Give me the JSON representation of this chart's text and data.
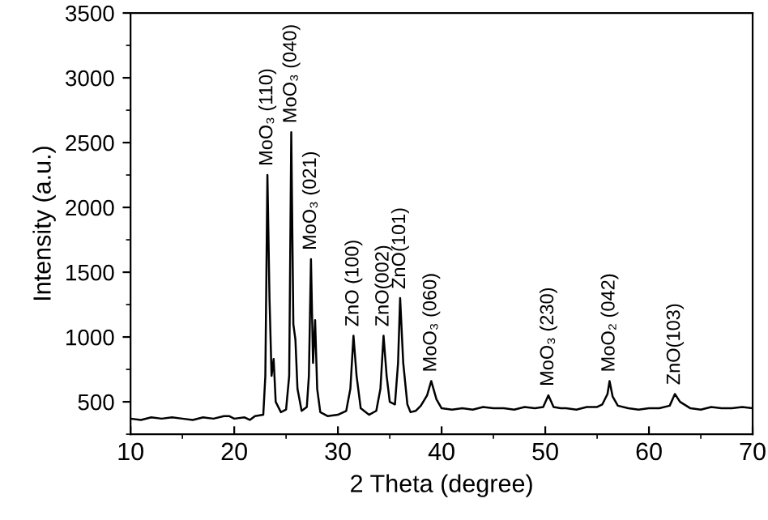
{
  "chart_data": {
    "type": "line",
    "xlabel": "2 Theta (degree)",
    "ylabel": "Intensity (a.u.)",
    "xlim": [
      10,
      70
    ],
    "ylim": [
      250,
      3500
    ],
    "xticks": [
      10,
      20,
      30,
      40,
      50,
      60,
      70
    ],
    "yticks": [
      500,
      1000,
      1500,
      2000,
      2500,
      3000,
      3500
    ],
    "grid": false,
    "legend": false,
    "marker": "none",
    "line_style": "solid",
    "series": [
      {
        "color": "#000000",
        "x": [
          10,
          11,
          12,
          13,
          14,
          15,
          16,
          17,
          18,
          19,
          19.5,
          20,
          21,
          21.5,
          22,
          22.8,
          23.0,
          23.2,
          23.4,
          23.6,
          23.8,
          24.0,
          24.5,
          25.0,
          25.3,
          25.5,
          25.7,
          25.9,
          26.1,
          26.5,
          27.0,
          27.2,
          27.4,
          27.6,
          27.8,
          28.0,
          28.3,
          29,
          30,
          30.8,
          31.2,
          31.5,
          31.8,
          32.2,
          33,
          33.7,
          34.1,
          34.4,
          34.7,
          35.0,
          35.5,
          35.8,
          36.0,
          36.3,
          36.7,
          37,
          37.5,
          38,
          38.6,
          39.0,
          39.5,
          40,
          41,
          42,
          43,
          44,
          45,
          46,
          47,
          48,
          49,
          49.8,
          50.3,
          50.8,
          51.5,
          52,
          53,
          54,
          55,
          55.5,
          56.0,
          56.2,
          56.5,
          57,
          58,
          59,
          60,
          61,
          62,
          62.5,
          63,
          64,
          65,
          66,
          67,
          68,
          69,
          70
        ],
        "values": [
          370,
          360,
          380,
          370,
          380,
          370,
          360,
          380,
          370,
          390,
          390,
          370,
          380,
          360,
          390,
          400,
          700,
          2250,
          1300,
          700,
          830,
          500,
          420,
          440,
          700,
          2580,
          1100,
          980,
          600,
          430,
          460,
          700,
          1600,
          800,
          1130,
          600,
          420,
          390,
          400,
          430,
          600,
          1010,
          700,
          450,
          400,
          430,
          600,
          1010,
          700,
          500,
          480,
          800,
          1300,
          800,
          480,
          420,
          430,
          470,
          550,
          660,
          520,
          450,
          440,
          450,
          440,
          460,
          450,
          450,
          440,
          460,
          450,
          460,
          550,
          460,
          450,
          450,
          440,
          460,
          460,
          480,
          560,
          660,
          540,
          470,
          450,
          440,
          450,
          450,
          470,
          560,
          500,
          450,
          440,
          460,
          450,
          450,
          460,
          450
        ]
      }
    ],
    "annotations": [
      {
        "text": "MoO₃ (110)",
        "x": 23.2,
        "y": 2250
      },
      {
        "text": "MoO₃ (040)",
        "x": 25.5,
        "y": 2580
      },
      {
        "text": "MoO₃ (021)",
        "x": 27.4,
        "y": 1600
      },
      {
        "text": "ZnO (100)",
        "x": 31.5,
        "y": 1010
      },
      {
        "text": "ZnO(002)",
        "x": 34.4,
        "y": 1010
      },
      {
        "text": "ZnO(101)",
        "x": 36.0,
        "y": 1300
      },
      {
        "text": "MoO₃ (060)",
        "x": 39.0,
        "y": 660
      },
      {
        "text": "MoO₃ (230)",
        "x": 50.3,
        "y": 550
      },
      {
        "text": "MoO₂ (042)",
        "x": 56.2,
        "y": 660
      },
      {
        "text": "ZnO(103)",
        "x": 62.5,
        "y": 560
      }
    ]
  }
}
